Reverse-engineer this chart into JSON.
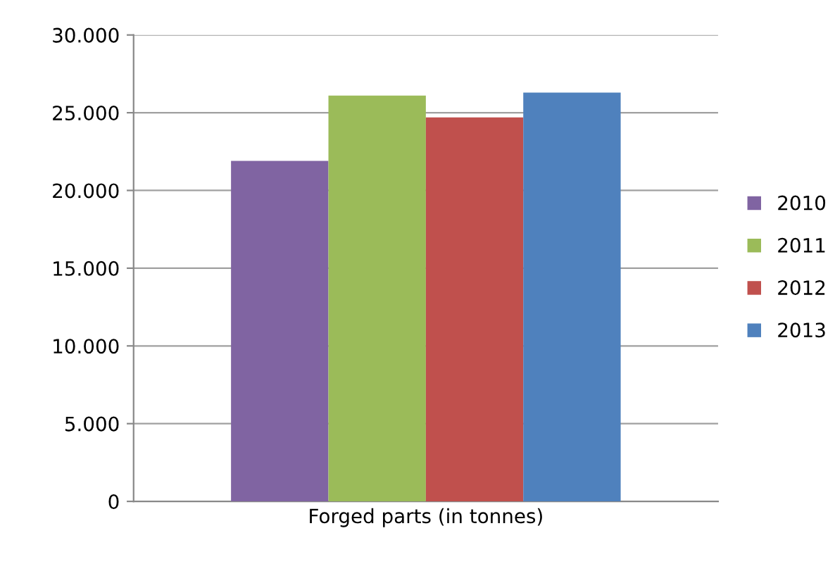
{
  "chart_data": {
    "type": "bar",
    "categories": [
      "Forged parts (in tonnes)"
    ],
    "series": [
      {
        "name": "2010",
        "color": "#8064a2",
        "values": [
          21900
        ]
      },
      {
        "name": "2011",
        "color": "#9bbb59",
        "values": [
          26100
        ]
      },
      {
        "name": "2012",
        "color": "#c0504d",
        "values": [
          24700
        ]
      },
      {
        "name": "2013",
        "color": "#4f81bd",
        "values": [
          26300
        ]
      }
    ],
    "ylim": [
      0,
      30000
    ],
    "yticks": [
      {
        "value": 0,
        "label": "0"
      },
      {
        "value": 5000,
        "label": "5.000"
      },
      {
        "value": 10000,
        "label": "10.000"
      },
      {
        "value": 15000,
        "label": "15.000"
      },
      {
        "value": 20000,
        "label": "20.000"
      },
      {
        "value": 25000,
        "label": "25.000"
      },
      {
        "value": 30000,
        "label": "30.000"
      }
    ],
    "grid": "y",
    "legend": "right"
  }
}
